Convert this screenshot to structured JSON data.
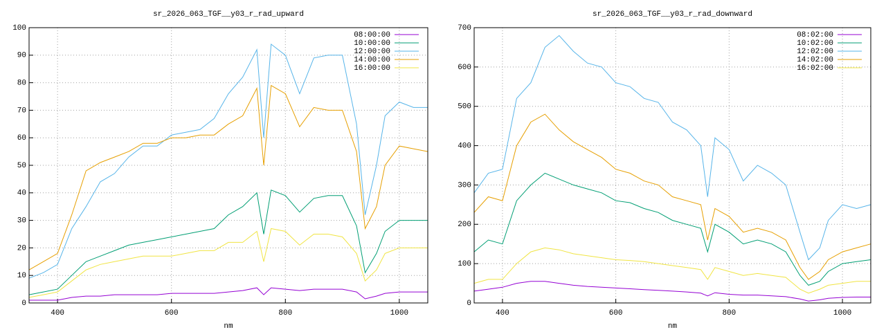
{
  "chart_data": [
    {
      "type": "line",
      "title": "sr_2026_063_TGF__y03_r_rad_upward",
      "x_label": "nm",
      "x": [
        350,
        375,
        400,
        425,
        450,
        475,
        500,
        525,
        550,
        575,
        600,
        625,
        650,
        675,
        700,
        725,
        750,
        762,
        775,
        800,
        825,
        850,
        875,
        900,
        925,
        940,
        960,
        975,
        1000,
        1025,
        1050
      ],
      "xlim": [
        350,
        1050
      ],
      "xticks": [
        400,
        600,
        800,
        1000
      ],
      "ylim": [
        0,
        100
      ],
      "yticks": [
        0,
        10,
        20,
        30,
        40,
        50,
        60,
        70,
        80,
        90,
        100
      ],
      "grid": true,
      "legend": "top-right",
      "series": [
        {
          "name": "08:00:00",
          "color": "#9400d3",
          "values": [
            1,
            1,
            1,
            2,
            2.5,
            2.5,
            3,
            3,
            3,
            3,
            3.5,
            3.5,
            3.5,
            3.5,
            4,
            4.5,
            5.5,
            3,
            5.5,
            5,
            4.5,
            5,
            5,
            5,
            4,
            1.5,
            2.5,
            3.5,
            4,
            4,
            4
          ]
        },
        {
          "name": "10:00:00",
          "color": "#009e73",
          "values": [
            3,
            4,
            5,
            10,
            15,
            17,
            19,
            21,
            22,
            23,
            24,
            25,
            26,
            27,
            32,
            35,
            40,
            25,
            41,
            39,
            33,
            38,
            39,
            39,
            28,
            11,
            18,
            26,
            30,
            30,
            30
          ]
        },
        {
          "name": "12:00:00",
          "color": "#56b4e9",
          "values": [
            9,
            11,
            14,
            27,
            35,
            44,
            47,
            53,
            57,
            57,
            61,
            62,
            63,
            67,
            76,
            82,
            92,
            60,
            94,
            90,
            76,
            89,
            90,
            90,
            65,
            32,
            50,
            68,
            73,
            71,
            71
          ]
        },
        {
          "name": "14:00:00",
          "color": "#e69f00",
          "values": [
            12,
            15,
            18,
            32,
            48,
            51,
            53,
            55,
            58,
            58,
            60,
            60,
            61,
            61,
            65,
            68,
            78,
            50,
            79,
            76,
            64,
            71,
            70,
            70,
            55,
            27,
            35,
            50,
            57,
            56,
            55
          ]
        },
        {
          "name": "16:00:00",
          "color": "#f0e442",
          "values": [
            2,
            3,
            4,
            8,
            12,
            14,
            15,
            16,
            17,
            17,
            17,
            18,
            19,
            19,
            22,
            22,
            26,
            15,
            27,
            26,
            21,
            25,
            25,
            24,
            18,
            8,
            12,
            18,
            20,
            20,
            20
          ]
        }
      ]
    },
    {
      "type": "line",
      "title": "sr_2026_063_TGF__y03_r_rad_downward",
      "x_label": "nm",
      "x": [
        350,
        375,
        400,
        425,
        450,
        475,
        500,
        525,
        550,
        575,
        600,
        625,
        650,
        675,
        700,
        725,
        750,
        762,
        775,
        800,
        825,
        850,
        875,
        900,
        925,
        940,
        960,
        975,
        1000,
        1025,
        1050
      ],
      "xlim": [
        350,
        1050
      ],
      "xticks": [
        400,
        600,
        800,
        1000
      ],
      "ylim": [
        0,
        700
      ],
      "yticks": [
        0,
        100,
        200,
        300,
        400,
        500,
        600,
        700
      ],
      "grid": true,
      "legend": "top-right",
      "series": [
        {
          "name": "08:02:00",
          "color": "#9400d3",
          "values": [
            30,
            35,
            40,
            50,
            55,
            55,
            50,
            45,
            42,
            40,
            38,
            36,
            34,
            32,
            30,
            28,
            25,
            18,
            26,
            22,
            20,
            20,
            18,
            16,
            10,
            5,
            8,
            12,
            14,
            15,
            15
          ]
        },
        {
          "name": "10:02:00",
          "color": "#009e73",
          "values": [
            130,
            160,
            150,
            260,
            300,
            330,
            315,
            300,
            290,
            280,
            260,
            255,
            240,
            230,
            210,
            200,
            190,
            130,
            200,
            180,
            150,
            160,
            150,
            130,
            70,
            45,
            55,
            80,
            100,
            105,
            110
          ]
        },
        {
          "name": "12:02:00",
          "color": "#56b4e9",
          "values": [
            280,
            330,
            340,
            520,
            560,
            650,
            680,
            640,
            610,
            600,
            560,
            550,
            520,
            510,
            460,
            440,
            400,
            270,
            420,
            390,
            310,
            350,
            330,
            300,
            180,
            110,
            140,
            210,
            250,
            240,
            250
          ]
        },
        {
          "name": "14:02:00",
          "color": "#e69f00",
          "values": [
            230,
            270,
            260,
            400,
            460,
            480,
            440,
            410,
            390,
            370,
            340,
            330,
            310,
            300,
            270,
            260,
            250,
            160,
            240,
            220,
            180,
            190,
            180,
            160,
            90,
            60,
            80,
            110,
            130,
            140,
            150
          ]
        },
        {
          "name": "16:02:00",
          "color": "#f0e442",
          "values": [
            50,
            60,
            60,
            100,
            130,
            140,
            135,
            125,
            120,
            115,
            110,
            108,
            105,
            100,
            95,
            90,
            85,
            60,
            90,
            80,
            70,
            75,
            70,
            65,
            35,
            25,
            35,
            45,
            50,
            55,
            55
          ]
        }
      ]
    }
  ]
}
